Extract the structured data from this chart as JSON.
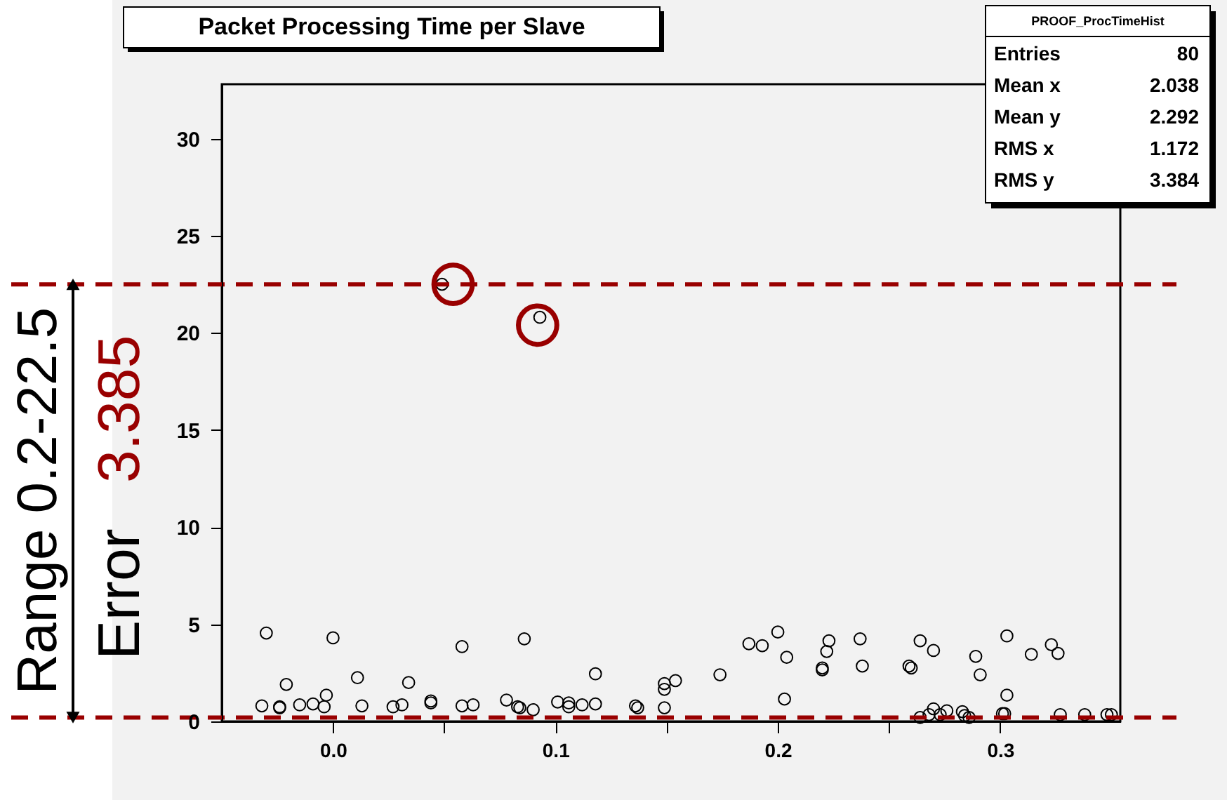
{
  "chart_data": {
    "type": "scatter",
    "title": "Packet Processing Time per Slave",
    "xlim": [
      -0.05,
      0.354
    ],
    "ylim": [
      0,
      32.8
    ],
    "xticks": [
      {
        "value": 0,
        "label": "0.0"
      },
      {
        "value": 0.05,
        "label": null
      },
      {
        "value": 0.1,
        "label": "0.1"
      },
      {
        "value": 0.15,
        "label": null
      },
      {
        "value": 0.2,
        "label": "0.2"
      },
      {
        "value": 0.25,
        "label": null
      },
      {
        "value": 0.3,
        "label": "0.3"
      }
    ],
    "yticks": [
      0,
      5,
      10,
      15,
      20,
      25,
      30
    ],
    "grid": false,
    "marker": "circle",
    "series": [
      {
        "color": "#000000",
        "x": [
          -0.03,
          -0.032,
          -0.024,
          -0.024,
          -0.021,
          -0.015,
          -0.009,
          -0.003,
          -0.004,
          0.0,
          0.011,
          0.013,
          0.027,
          0.031,
          0.034,
          0.044,
          0.044,
          0.049,
          0.058,
          0.058,
          0.063,
          0.078,
          0.083,
          0.084,
          0.086,
          0.09,
          0.093,
          0.101,
          0.106,
          0.106,
          0.112,
          0.118,
          0.118,
          0.136,
          0.137,
          0.149,
          0.149,
          0.149,
          0.154,
          0.174,
          0.187,
          0.193,
          0.2,
          0.204,
          0.203,
          0.22,
          0.22,
          0.223,
          0.222,
          0.237,
          0.238,
          0.259,
          0.26,
          0.264,
          0.27,
          0.264,
          0.27,
          0.268,
          0.273,
          0.276,
          0.283,
          0.284,
          0.286,
          0.289,
          0.291,
          0.303,
          0.301,
          0.302,
          0.303,
          0.314,
          0.323,
          0.326,
          0.327,
          0.338,
          0.348,
          0.35
        ],
        "values": [
          4.55,
          0.8,
          0.7,
          0.75,
          1.9,
          0.85,
          0.9,
          1.35,
          0.75,
          4.3,
          2.25,
          0.8,
          0.75,
          0.85,
          2.0,
          1.05,
          0.95,
          22.5,
          3.85,
          0.8,
          0.85,
          1.1,
          0.75,
          0.7,
          4.25,
          0.6,
          20.8,
          1.0,
          0.75,
          0.95,
          0.85,
          2.45,
          0.9,
          0.8,
          0.7,
          0.7,
          1.95,
          1.65,
          2.1,
          2.4,
          4.0,
          3.9,
          4.6,
          3.3,
          1.15,
          2.75,
          2.65,
          4.15,
          3.6,
          4.25,
          2.85,
          2.85,
          2.75,
          4.15,
          3.65,
          0.2,
          0.65,
          0.35,
          0.35,
          0.55,
          0.5,
          0.3,
          0.2,
          3.35,
          2.4,
          1.35,
          0.4,
          0.4,
          4.4,
          3.45,
          3.95,
          3.5,
          0.35,
          0.35,
          0.35,
          0.35
        ]
      },
      {
        "color": "#990000",
        "x": [
          0.054,
          0.092
        ],
        "values": [
          22.5,
          20.4
        ]
      }
    ],
    "ref_lines": [
      {
        "axis": "y",
        "value": 22.5,
        "color": "#990000",
        "line_style": "dashed"
      },
      {
        "axis": "y",
        "value": 0.2,
        "color": "#990000",
        "line_style": "dashed"
      }
    ],
    "annotations": [
      "Range 0.2-22.5",
      "Error 3.385",
      "PROOF_ProcTimeHist",
      "Entries 80",
      "Mean x 2.038",
      "Mean y 2.292",
      "RMS x 1.172",
      "RMS y 3.384"
    ]
  }
}
